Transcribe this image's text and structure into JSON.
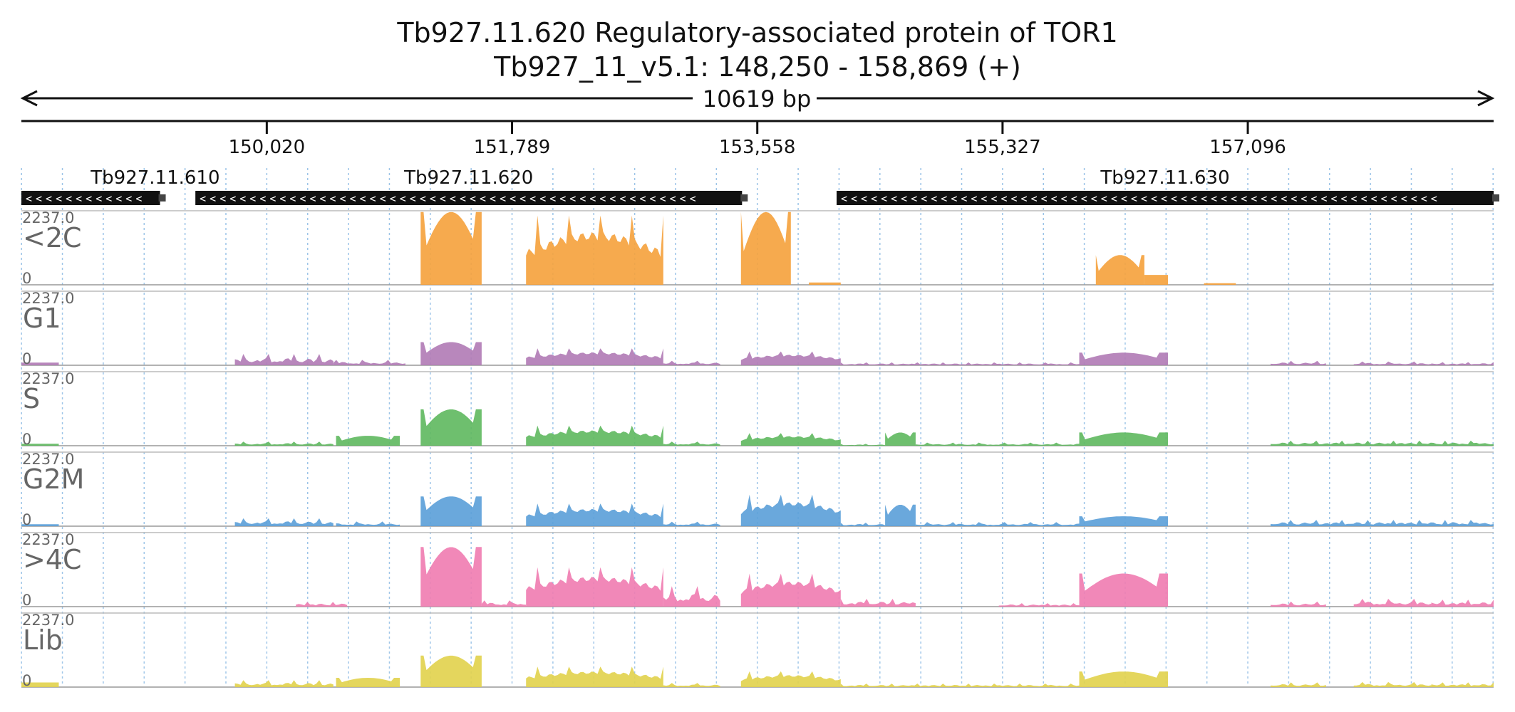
{
  "chart_data": {
    "type": "area",
    "title": "Tb927.11.620  Regulatory-associated protein of TOR1",
    "subtitle": "Tb927_11_v5.1: 148,250 - 158,869 (+)",
    "span_label": "10619 bp",
    "xlim": [
      148250,
      158869
    ],
    "x_ticks": [
      150020,
      151789,
      153558,
      155327,
      157096
    ],
    "x_tick_labels": [
      "150,020",
      "151,789",
      "153,558",
      "155,327",
      "157,096"
    ],
    "grid": true,
    "genes": [
      {
        "name": "Tb927.11.610",
        "start": 148250,
        "end": 149250,
        "strand": "-"
      },
      {
        "name": "Tb927.11.620",
        "start": 149505,
        "end": 153448,
        "strand": "-"
      },
      {
        "name": "Tb927.11.630",
        "start": 154130,
        "end": 158869,
        "strand": "-"
      }
    ],
    "track_ymax_label": "2237.0",
    "track_ymin_label": "0",
    "ylim": [
      0,
      2237
    ],
    "series": [
      {
        "name": "<2C",
        "color": "#F5A13B",
        "segments": [
          [
            151130,
            151570,
            2200,
            "hump"
          ],
          [
            151890,
            152880,
            2200,
            "exon"
          ],
          [
            153440,
            153800,
            2200,
            "hump"
          ],
          [
            153930,
            154160,
            70,
            "flat"
          ],
          [
            156000,
            156350,
            900,
            "hump"
          ],
          [
            156350,
            156520,
            300,
            "flat"
          ],
          [
            156780,
            157010,
            50,
            "flat"
          ]
        ]
      },
      {
        "name": "G1",
        "color": "#B07AB5",
        "segments": [
          [
            148250,
            148520,
            80,
            "flat"
          ],
          [
            149790,
            150500,
            360,
            "noise"
          ],
          [
            150500,
            151020,
            170,
            "noise"
          ],
          [
            151130,
            151570,
            700,
            "hump"
          ],
          [
            151890,
            152880,
            540,
            "exon"
          ],
          [
            152880,
            153290,
            140,
            "noise"
          ],
          [
            153440,
            154160,
            440,
            "exon"
          ],
          [
            154160,
            155880,
            90,
            "noise"
          ],
          [
            155880,
            156520,
            380,
            "hump"
          ],
          [
            157260,
            157660,
            140,
            "noise"
          ],
          [
            157860,
            158420,
            120,
            "noise"
          ],
          [
            158420,
            158869,
            100,
            "noise"
          ]
        ]
      },
      {
        "name": "S",
        "color": "#5EB85E",
        "segments": [
          [
            148250,
            148520,
            60,
            "flat"
          ],
          [
            149790,
            150500,
            130,
            "noise"
          ],
          [
            150520,
            150980,
            300,
            "hump"
          ],
          [
            151130,
            151570,
            1100,
            "hump"
          ],
          [
            151890,
            152880,
            640,
            "exon"
          ],
          [
            152880,
            153290,
            130,
            "noise"
          ],
          [
            153440,
            154160,
            400,
            "exon"
          ],
          [
            154160,
            154480,
            60,
            "noise"
          ],
          [
            154480,
            154700,
            400,
            "hump"
          ],
          [
            154700,
            155880,
            100,
            "noise"
          ],
          [
            155880,
            156520,
            400,
            "hump"
          ],
          [
            157260,
            158869,
            160,
            "noise"
          ]
        ]
      },
      {
        "name": "G2M",
        "color": "#5A9FD8",
        "segments": [
          [
            148250,
            148520,
            60,
            "flat"
          ],
          [
            149790,
            150500,
            250,
            "noise"
          ],
          [
            150520,
            150980,
            150,
            "noise"
          ],
          [
            151130,
            151570,
            900,
            "hump"
          ],
          [
            151890,
            152880,
            720,
            "exon"
          ],
          [
            152880,
            153290,
            140,
            "noise"
          ],
          [
            153440,
            154160,
            1000,
            "exon"
          ],
          [
            154160,
            154480,
            110,
            "noise"
          ],
          [
            154480,
            154700,
            650,
            "hump"
          ],
          [
            154700,
            155880,
            130,
            "noise"
          ],
          [
            155880,
            156520,
            300,
            "hump"
          ],
          [
            157260,
            158869,
            200,
            "noise"
          ]
        ]
      },
      {
        "name": ">4C",
        "color": "#F07BB0",
        "segments": [
          [
            150230,
            150600,
            150,
            "noise"
          ],
          [
            151130,
            151570,
            1800,
            "hump"
          ],
          [
            151570,
            151890,
            200,
            "noise"
          ],
          [
            151890,
            152880,
            1250,
            "exon"
          ],
          [
            152880,
            153290,
            650,
            "noise"
          ],
          [
            153440,
            154160,
            1050,
            "exon"
          ],
          [
            154160,
            154700,
            250,
            "noise"
          ],
          [
            155300,
            155880,
            110,
            "noise"
          ],
          [
            155880,
            156520,
            1000,
            "hump"
          ],
          [
            157260,
            157660,
            160,
            "noise"
          ],
          [
            157860,
            158420,
            250,
            "noise"
          ],
          [
            158420,
            158869,
            220,
            "noise"
          ]
        ]
      },
      {
        "name": "Lib",
        "color": "#E1D14B",
        "segments": [
          [
            148250,
            148520,
            140,
            "flat"
          ],
          [
            149790,
            150500,
            220,
            "noise"
          ],
          [
            150520,
            150980,
            280,
            "hump"
          ],
          [
            151130,
            151570,
            950,
            "hump"
          ],
          [
            151890,
            152880,
            650,
            "exon"
          ],
          [
            152880,
            153290,
            130,
            "noise"
          ],
          [
            153440,
            154160,
            500,
            "exon"
          ],
          [
            154160,
            155880,
            110,
            "noise"
          ],
          [
            155880,
            156520,
            470,
            "hump"
          ],
          [
            157260,
            157660,
            150,
            "noise"
          ],
          [
            157860,
            158420,
            160,
            "noise"
          ],
          [
            158420,
            158869,
            150,
            "noise"
          ]
        ]
      }
    ]
  }
}
